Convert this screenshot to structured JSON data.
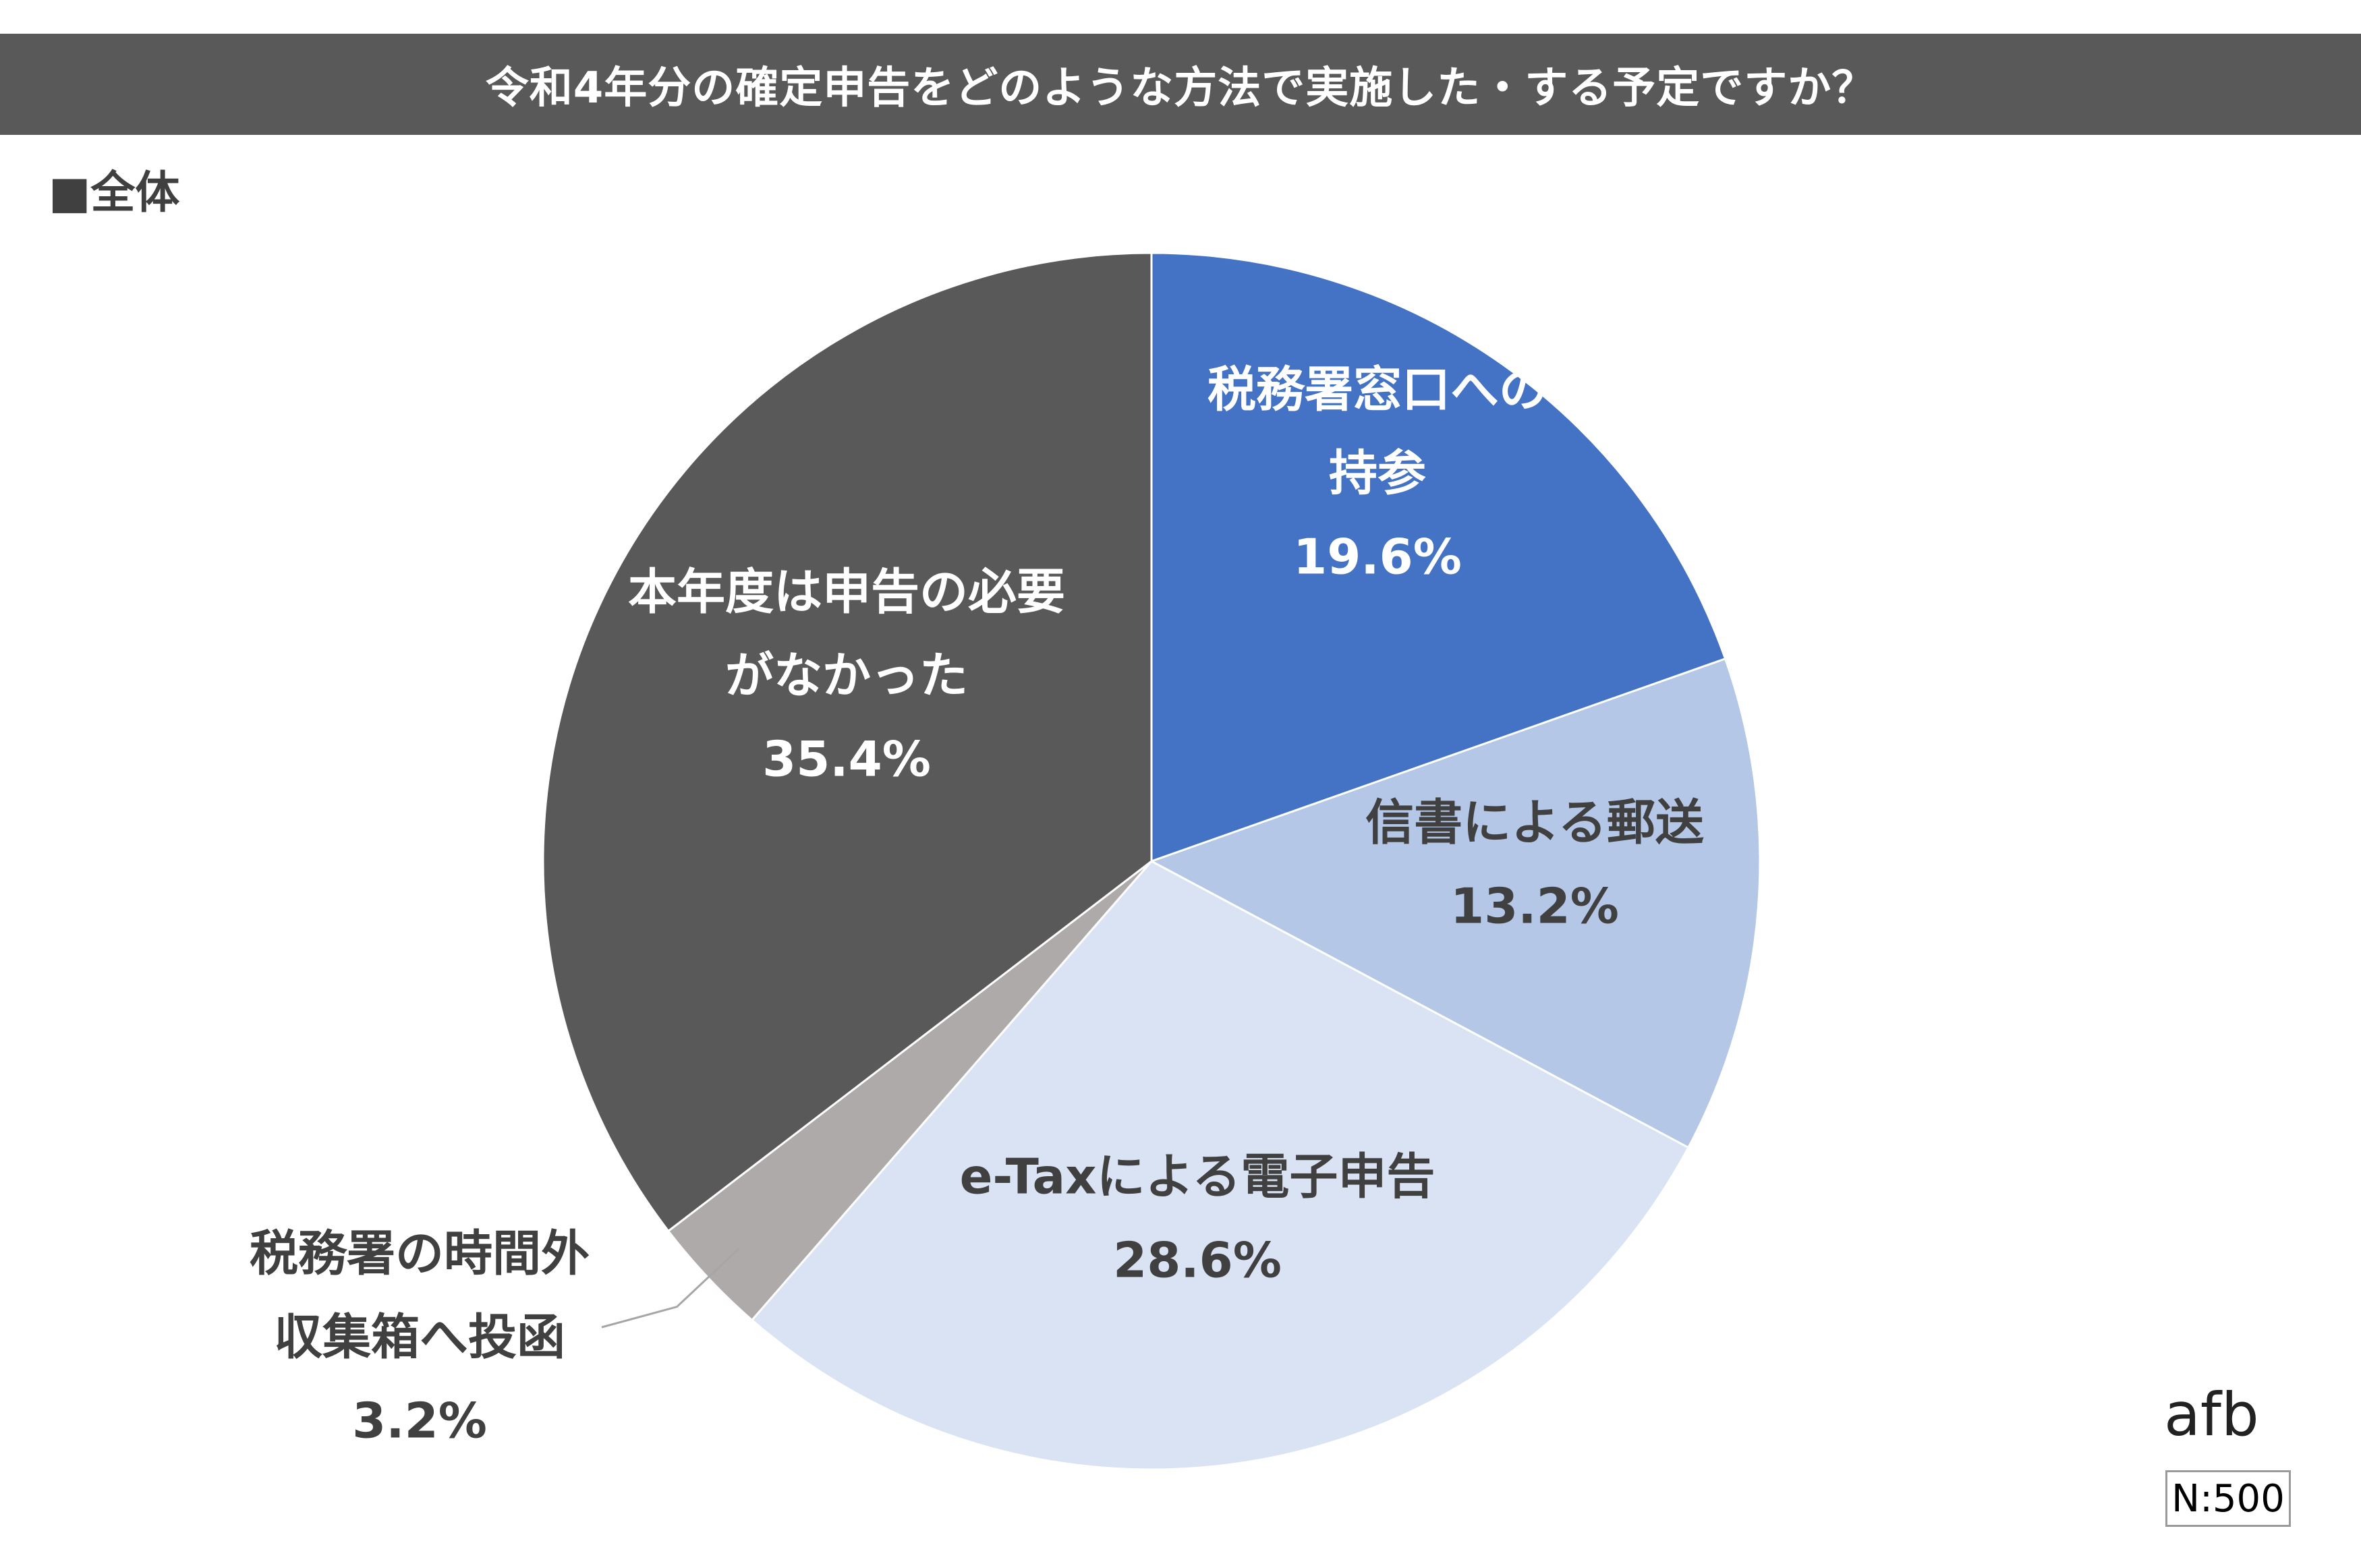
{
  "title": "令和4年分の確定申告をどのような方法で実施した・する予定ですか？",
  "subtitle": "■全体",
  "brand": "afb",
  "sample_size": "N:500",
  "chart_data": {
    "type": "pie",
    "title": "令和4年分の確定申告をどのような方法で実施した・する予定ですか？",
    "subtitle": "全体",
    "start_angle_deg": 0,
    "direction": "clockwise",
    "slices": [
      {
        "label_lines": [
          "税務署窓口への",
          "持参"
        ],
        "value": 19.6,
        "value_label": "19.6%",
        "color": "#4472c4",
        "text_color": "#ffffff"
      },
      {
        "label_lines": [
          "信書による郵送"
        ],
        "value": 13.2,
        "value_label": "13.2%",
        "color": "#b4c7e7",
        "text_color": "#404040"
      },
      {
        "label_lines": [
          "e-Taxによる電子申告"
        ],
        "value": 28.6,
        "value_label": "28.6%",
        "color": "#dae3f3",
        "text_color": "#404040"
      },
      {
        "label_lines": [
          "税務署の時間外",
          "収集箱へ投函"
        ],
        "value": 3.2,
        "value_label": "3.2%",
        "color": "#aeaaaa",
        "text_color": "#404040"
      },
      {
        "label_lines": [
          "本年度は申告の必要",
          "がなかった"
        ],
        "value": 35.4,
        "value_label": "35.4%",
        "color": "#595959",
        "text_color": "#ffffff"
      }
    ]
  }
}
